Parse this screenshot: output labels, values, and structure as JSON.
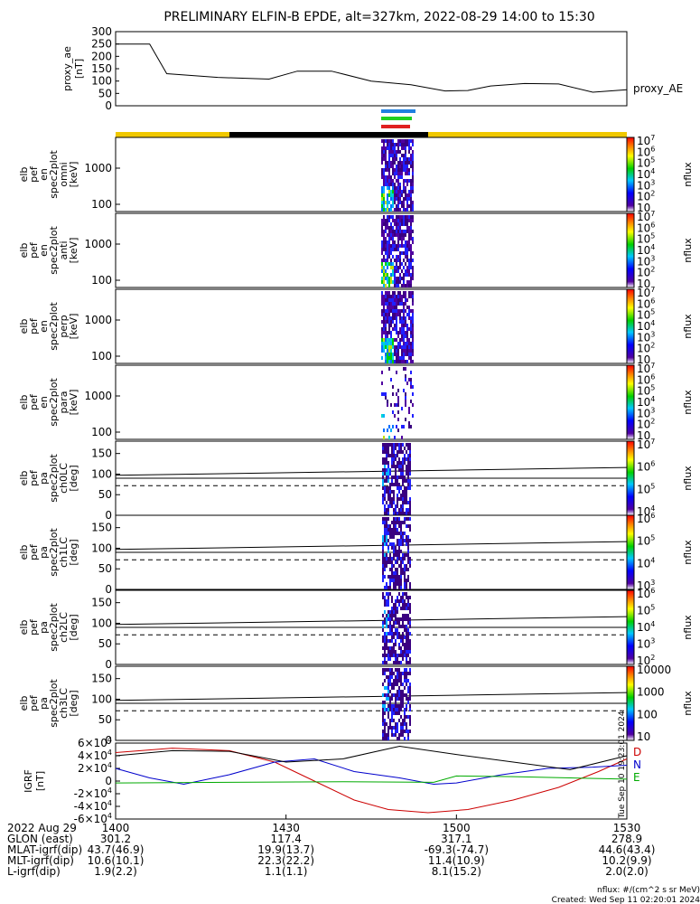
{
  "title": "PRELIMINARY ELFIN-B EPDE, alt=327km, 2022-08-29 14:00 to 15:30",
  "chart_data": {
    "type": "line",
    "time_range": [
      "14:00",
      "15:30"
    ],
    "ae_panel": {
      "ylabel_lines": [
        "proxy_ae",
        "[nT]"
      ],
      "yticks": [
        "300",
        "250",
        "200",
        "150",
        "100",
        "50",
        "0"
      ],
      "ylim": [
        0,
        300
      ],
      "series_name": "proxy_AE",
      "x_min": [
        0,
        6,
        9,
        18,
        27,
        32,
        38,
        45,
        52,
        58,
        62,
        66,
        72,
        78,
        84,
        90
      ],
      "values": [
        250,
        250,
        130,
        115,
        108,
        140,
        140,
        100,
        85,
        60,
        62,
        80,
        90,
        88,
        55,
        65
      ]
    },
    "spec_panels": [
      {
        "label_lines": [
          "elb",
          "pef",
          "en",
          "spec2plot",
          "omni",
          "[keV]"
        ],
        "yticks": [
          "1000",
          "100"
        ],
        "cbar_ticks": [
          "10^7",
          "10^6",
          "10^5",
          "10^4",
          "10^3",
          "10^2",
          "10"
        ],
        "cbar_label": "nflux"
      },
      {
        "label_lines": [
          "elb",
          "pef",
          "en",
          "spec2plot",
          "anti",
          "[keV]"
        ],
        "yticks": [
          "1000",
          "100"
        ],
        "cbar_ticks": [
          "10^7",
          "10^6",
          "10^5",
          "10^4",
          "10^3",
          "10^2",
          "10"
        ],
        "cbar_label": "nflux"
      },
      {
        "label_lines": [
          "elb",
          "pef",
          "en",
          "spec2plot",
          "perp",
          "[keV]"
        ],
        "yticks": [
          "1000",
          "100"
        ],
        "cbar_ticks": [
          "10^7",
          "10^6",
          "10^5",
          "10^4",
          "10^3",
          "10^2",
          "10"
        ],
        "cbar_label": "nflux"
      },
      {
        "label_lines": [
          "elb",
          "pef",
          "en",
          "spec2plot",
          "para",
          "[keV]"
        ],
        "yticks": [
          "1000",
          "100"
        ],
        "cbar_ticks": [
          "10^7",
          "10^6",
          "10^5",
          "10^4",
          "10^3",
          "10^2",
          "10"
        ],
        "cbar_label": "nflux"
      }
    ],
    "pa_panels": [
      {
        "label_lines": [
          "elb",
          "pef",
          "pa",
          "spec2plot",
          "ch0LC",
          "[deg]"
        ],
        "yticks": [
          "150",
          "100",
          "50",
          "0"
        ],
        "ylim": [
          0,
          180
        ],
        "cbar_ticks": [
          "10^7",
          "10^6",
          "10^5",
          "10^4"
        ],
        "cbar_label": "nflux"
      },
      {
        "label_lines": [
          "elb",
          "pef",
          "pa",
          "spec2plot",
          "ch1LC",
          "[deg]"
        ],
        "yticks": [
          "150",
          "100",
          "50",
          "0"
        ],
        "ylim": [
          0,
          180
        ],
        "cbar_ticks": [
          "10^6",
          "10^5",
          "10^4",
          "10^3"
        ],
        "cbar_label": "nflux"
      },
      {
        "label_lines": [
          "elb",
          "pef",
          "pa",
          "spec2plot",
          "ch2LC",
          "[deg]"
        ],
        "yticks": [
          "150",
          "100",
          "50",
          "0"
        ],
        "ylim": [
          0,
          180
        ],
        "cbar_ticks": [
          "10^6",
          "10^5",
          "10^4",
          "10^3",
          "10^2"
        ],
        "cbar_label": "nflux"
      },
      {
        "label_lines": [
          "elb",
          "pef",
          "pa",
          "spec2plot",
          "ch3LC",
          "[deg]"
        ],
        "yticks": [
          "150",
          "100",
          "50",
          "0"
        ],
        "ylim": [
          0,
          180
        ],
        "cbar_ticks": [
          "10000",
          "1000",
          "100",
          "10"
        ],
        "cbar_label": "nflux"
      }
    ],
    "igrf_panel": {
      "ylabel_lines": [
        "IGRF",
        "[nT]"
      ],
      "yticks": [
        "6×10^4",
        "4×10^4",
        "2×10^4",
        "0",
        "-2×10^4",
        "-4×10^4",
        "-6×10^4"
      ],
      "ylim": [
        -60000,
        60000
      ],
      "legend": [
        "D",
        "N",
        "E"
      ],
      "series": [
        {
          "name": "D",
          "color": "#cc0000",
          "x_min": [
            0,
            10,
            20,
            28,
            35,
            42,
            48,
            55,
            62,
            70,
            78,
            85,
            90
          ],
          "values": [
            45000,
            52000,
            48000,
            30000,
            0,
            -30000,
            -45000,
            -50000,
            -45000,
            -30000,
            -10000,
            15000,
            35000
          ]
        },
        {
          "name": "N",
          "color": "#0000cc",
          "x_min": [
            0,
            6,
            12,
            20,
            28,
            35,
            42,
            50,
            56,
            60,
            68,
            76,
            84,
            90
          ],
          "values": [
            20000,
            5000,
            -5000,
            10000,
            30000,
            35000,
            15000,
            5000,
            -5000,
            -3000,
            10000,
            20000,
            22000,
            25000
          ]
        },
        {
          "name": "E",
          "color": "#00aa00",
          "x_min": [
            0,
            20,
            40,
            56,
            60,
            70,
            80,
            90
          ],
          "values": [
            -3000,
            -2000,
            -1000,
            -2000,
            8000,
            7000,
            5000,
            3000
          ]
        },
        {
          "name": "",
          "color": "#000000",
          "x_min": [
            0,
            10,
            20,
            30,
            40,
            50,
            60,
            70,
            80,
            90
          ],
          "values": [
            40000,
            48000,
            47000,
            30000,
            35000,
            55000,
            42000,
            30000,
            18000,
            40000
          ]
        }
      ]
    },
    "orbit_table": {
      "rows": [
        {
          "label": "2022 Aug 29",
          "values": [
            "1400",
            "1430",
            "1500",
            "1530"
          ]
        },
        {
          "label": "GLON (east)",
          "values": [
            "301.2",
            "117.4",
            "317.1",
            "278.9"
          ]
        },
        {
          "label": "MLAT-igrf(dip)",
          "values": [
            "43.7(46.9)",
            "19.9(13.7)",
            "-69.3(-74.7)",
            "44.6(43.4)"
          ]
        },
        {
          "label": "MLT-igrf(dip)",
          "values": [
            "10.6(10.1)",
            "22.3(22.2)",
            "11.4(10.9)",
            "10.2(9.9)"
          ]
        },
        {
          "label": "L-igrf(dip)",
          "values": [
            "1.9(2.2)",
            "1.1(1.1)",
            "8.1(15.2)",
            "2.0(2.0)"
          ]
        }
      ]
    },
    "footer": [
      "nflux: #/(cm^2 s sr MeV)",
      "Created: Wed Sep 11 02:20:01 2024"
    ],
    "side_stamp": "Tue Sep 10 19:23:01 2024"
  }
}
